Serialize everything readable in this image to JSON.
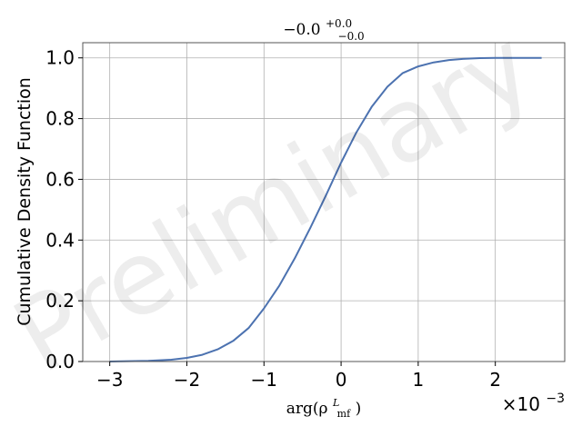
{
  "chart_data": {
    "type": "line",
    "title": {
      "main": "−0.0",
      "sup": "+0.0",
      "sub": "−0.0"
    },
    "xlabel": {
      "main": "arg(ρ",
      "sup": "L",
      "sub": "mf",
      "close": ")"
    },
    "ylabel": "Cumulative Density Function",
    "x_multiplier": {
      "base": "×10",
      "exp": "−3"
    },
    "xlim": [
      -3.35,
      2.9
    ],
    "ylim": [
      0.0,
      1.05
    ],
    "grid": true,
    "x_ticks": [
      {
        "value": -3,
        "label": "−3"
      },
      {
        "value": -2,
        "label": "−2"
      },
      {
        "value": -1,
        "label": "−1"
      },
      {
        "value": 0,
        "label": "0"
      },
      {
        "value": 1,
        "label": "1"
      },
      {
        "value": 2,
        "label": "2"
      }
    ],
    "y_ticks": [
      {
        "value": 0.0,
        "label": "0.0"
      },
      {
        "value": 0.2,
        "label": "0.2"
      },
      {
        "value": 0.4,
        "label": "0.4"
      },
      {
        "value": 0.6,
        "label": "0.6"
      },
      {
        "value": 0.8,
        "label": "0.8"
      },
      {
        "value": 1.0,
        "label": "1.0"
      }
    ],
    "series": [
      {
        "color": "#4c72b0",
        "x": [
          -3.0,
          -2.5,
          -2.2,
          -2.0,
          -1.8,
          -1.6,
          -1.4,
          -1.2,
          -1.0,
          -0.8,
          -0.6,
          -0.4,
          -0.2,
          0.0,
          0.2,
          0.4,
          0.6,
          0.8,
          1.0,
          1.2,
          1.4,
          1.6,
          1.8,
          2.0,
          2.2,
          2.6
        ],
        "y": [
          0.0,
          0.002,
          0.006,
          0.012,
          0.022,
          0.04,
          0.068,
          0.11,
          0.175,
          0.25,
          0.34,
          0.44,
          0.545,
          0.655,
          0.755,
          0.84,
          0.905,
          0.95,
          0.972,
          0.985,
          0.993,
          0.997,
          0.999,
          1.0,
          1.0,
          1.0
        ]
      }
    ]
  },
  "watermark": "Preliminary"
}
